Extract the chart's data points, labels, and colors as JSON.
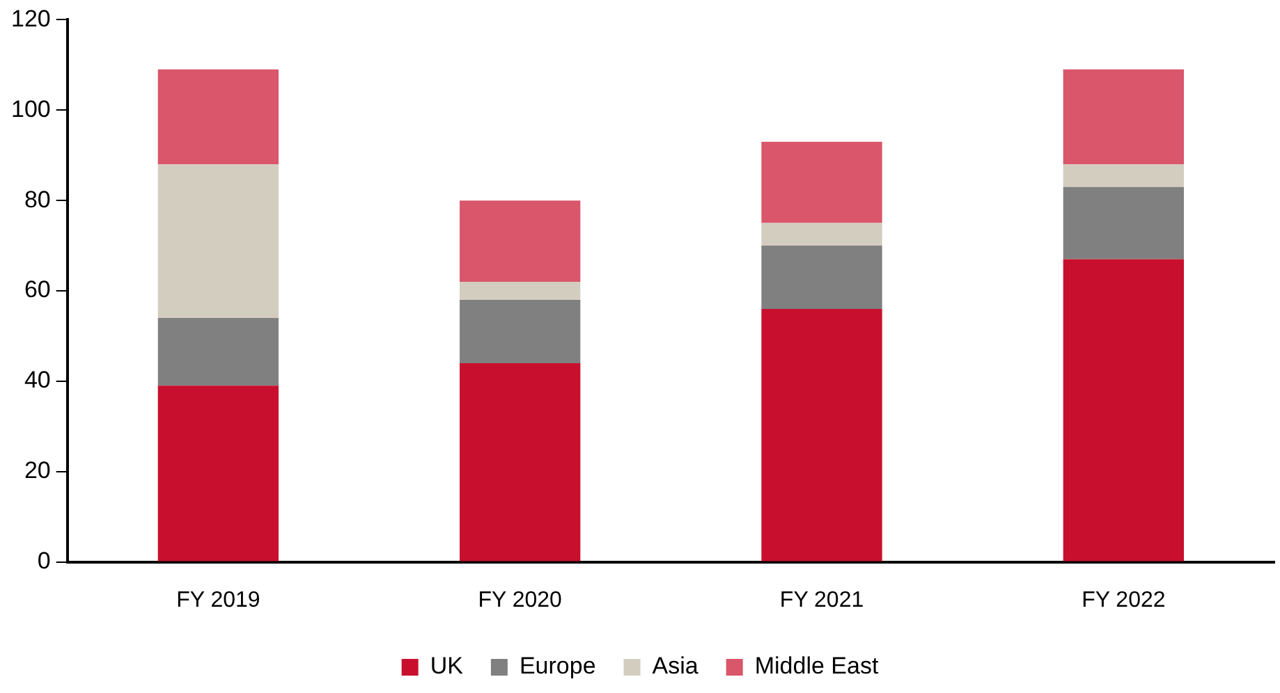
{
  "chart_data": {
    "type": "bar",
    "stacked": true,
    "categories": [
      "FY 2019",
      "FY 2020",
      "FY 2021",
      "FY 2022"
    ],
    "series": [
      {
        "name": "UK",
        "color": "#c8102e",
        "values": [
          39,
          44,
          56,
          67
        ]
      },
      {
        "name": "Europe",
        "color": "#808080",
        "values": [
          15,
          14,
          14,
          16
        ]
      },
      {
        "name": "Asia",
        "color": "#d3cdc0",
        "values": [
          34,
          4,
          5,
          5
        ]
      },
      {
        "name": "Middle East",
        "color": "#d9566b",
        "values": [
          21,
          18,
          18,
          21
        ]
      }
    ],
    "ylim": [
      0,
      120
    ],
    "yticks": [
      0,
      20,
      40,
      60,
      80,
      100,
      120
    ],
    "grid": false,
    "legend": "bottom"
  }
}
